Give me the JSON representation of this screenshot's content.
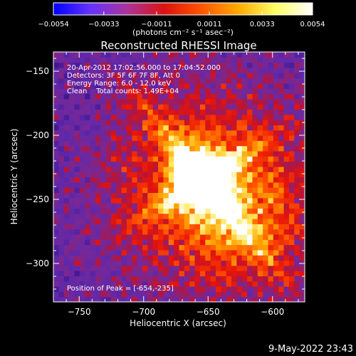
{
  "chart_data": {
    "type": "heatmap",
    "title": "Reconstructed RHESSI Image",
    "xlabel": "Heliocentric X (arcsec)",
    "ylabel": "Heliocentric Y (arcsec)",
    "xlim": [
      -770,
      -575
    ],
    "ylim": [
      -330,
      -135
    ],
    "x_ticks": [
      -750,
      -700,
      -650,
      -600
    ],
    "y_ticks": [
      -150,
      -200,
      -250,
      -300
    ],
    "x_tick_labels": [
      "−750",
      "−700",
      "−650",
      "−600"
    ],
    "y_tick_labels": [
      "−150",
      "−200",
      "−250",
      "−300"
    ],
    "colorbar": {
      "min": -0.0054,
      "max": 0.0054,
      "ticks": [
        -0.0054,
        -0.0033,
        -0.0011,
        0.0011,
        0.0033,
        0.0054
      ],
      "tick_labels": [
        "−0.0054",
        "−0.0033",
        "−0.0011",
        "0.0011",
        "0.0033",
        "0.0054"
      ],
      "unit": "(photons cm⁻² s⁻¹ asec⁻²)",
      "colors": [
        "#0000ff",
        "#6633ff",
        "#aa3399",
        "#dd1111",
        "#ff5500",
        "#ffaa00",
        "#ffff66",
        "#ffffff"
      ]
    },
    "peak": {
      "x": -654,
      "y": -235,
      "value": 0.0054
    },
    "annotations": [
      "20-Apr-2012 17:02:56.000 to 17:04:52.000",
      "Detectors: 3F 5F 6F 7F 8F, Att 0",
      "Energy Range: 6.0 - 12.0 keV",
      "Clean    Total counts: 1.49E+04"
    ],
    "peak_label": "Position of Peak = [-654,-235]",
    "grid": false
  },
  "footer": {
    "timestamp": "9-May-2022 23:43"
  }
}
